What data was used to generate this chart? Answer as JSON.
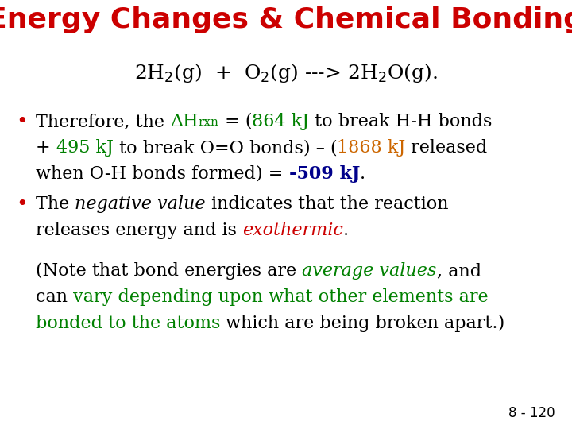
{
  "title": "Energy Changes & Chemical Bonding",
  "title_color": "#CC0000",
  "background_color": "#FFFFFF",
  "slide_number": "8 - 120",
  "green": "#008000",
  "orange": "#CC6600",
  "blue": "#00008B",
  "red": "#CC0000",
  "black": "#000000"
}
